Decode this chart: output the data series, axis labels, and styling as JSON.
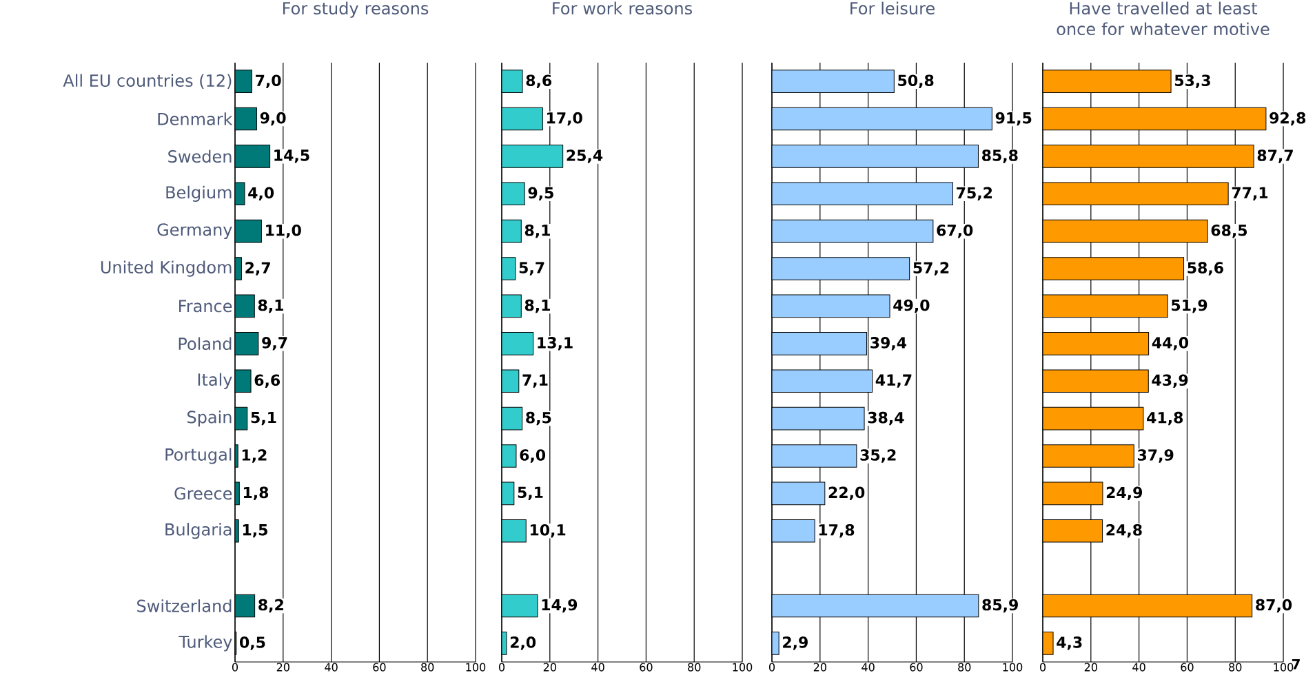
{
  "chart_data": [
    {
      "type": "bar",
      "orientation": "horizontal",
      "title": "For study reasons",
      "categories": [
        "All EU countries (12)",
        "Denmark",
        "Sweden",
        "Belgium",
        "Germany",
        "United Kingdom",
        "France",
        "Poland",
        "Italy",
        "Spain",
        "Portugal",
        "Greece",
        "Bulgaria",
        null,
        "Switzerland",
        "Turkey"
      ],
      "color": "#007a78",
      "values": [
        7.0,
        9.0,
        14.5,
        4.0,
        11.0,
        2.7,
        8.1,
        9.7,
        6.6,
        5.1,
        1.2,
        1.8,
        1.5,
        null,
        8.2,
        0.5
      ],
      "value_labels": [
        "7,0",
        "9,0",
        "14,5",
        "4,0",
        "11,0",
        "2,7",
        "8,1",
        "9,7",
        "6,6",
        "5,1",
        "1,2",
        "1,8",
        "1,5",
        null,
        "8,2",
        "0,5"
      ],
      "xlim": [
        0,
        100
      ],
      "xticks": [
        0,
        20,
        40,
        60,
        80,
        100
      ],
      "grid": "x"
    },
    {
      "type": "bar",
      "orientation": "horizontal",
      "title": "For work reasons",
      "categories": [
        null,
        null,
        null,
        null,
        null,
        null,
        null,
        null,
        null,
        null,
        null,
        null,
        null,
        null,
        null,
        null
      ],
      "color": "#33cccc",
      "values": [
        8.6,
        17.0,
        25.4,
        9.5,
        8.1,
        5.7,
        8.1,
        13.1,
        7.1,
        8.5,
        6.0,
        5.1,
        10.1,
        null,
        14.9,
        2.0
      ],
      "value_labels": [
        "8,6",
        "17,0",
        "25,4",
        "9,5",
        "8,1",
        "5,7",
        "8,1",
        "13,1",
        "7,1",
        "8,5",
        "6,0",
        "5,1",
        "10,1",
        null,
        "14,9",
        "2,0"
      ],
      "xlim": [
        0,
        100
      ],
      "xticks": [
        0,
        20,
        40,
        60,
        80,
        100
      ],
      "grid": "x",
      "tick_labels": "x"
    },
    {
      "type": "bar",
      "orientation": "horizontal",
      "title": "For leisure",
      "categories": [
        null,
        null,
        null,
        null,
        null,
        null,
        null,
        null,
        null,
        null,
        null,
        null,
        null,
        null,
        null,
        null
      ],
      "color": "#99ccff",
      "values": [
        50.8,
        91.5,
        85.8,
        75.2,
        67.0,
        57.2,
        49.0,
        39.4,
        41.7,
        38.4,
        35.2,
        22.0,
        17.8,
        null,
        85.9,
        2.9
      ],
      "value_labels": [
        "50,8",
        "91,5",
        "85,8",
        "75,2",
        "67,0",
        "57,2",
        "49,0",
        "39,4",
        "41,7",
        "38,4",
        "35,2",
        "22,0",
        "17,8",
        null,
        "85,9",
        "2,9"
      ],
      "xlim": [
        0,
        100
      ],
      "xticks": [
        0,
        20,
        40,
        60,
        80,
        100
      ],
      "grid": "x",
      "tick_labels": "x"
    },
    {
      "type": "bar",
      "orientation": "horizontal",
      "title": "Have travelled at least once for whatever motive",
      "categories": [
        null,
        null,
        null,
        null,
        null,
        null,
        null,
        null,
        null,
        null,
        null,
        null,
        null,
        null,
        null,
        null
      ],
      "color": "#ff9900",
      "values": [
        53.3,
        92.8,
        87.7,
        77.1,
        68.5,
        58.6,
        51.9,
        44.0,
        43.9,
        41.8,
        37.9,
        24.9,
        24.8,
        null,
        87.0,
        4.3
      ],
      "value_labels": [
        "53,3",
        "92,8",
        "87,7",
        "77,1",
        "68,5",
        "58,6",
        "51,9",
        "44,0",
        "43,9",
        "41,8",
        "37,9",
        "24,9",
        "24,8",
        null,
        "87,0",
        "4,3"
      ],
      "xlim": [
        0,
        100
      ],
      "xticks": [
        0,
        20,
        40,
        60,
        80,
        100
      ],
      "grid": "x",
      "tick_labels": "x",
      "annotations": [
        "7"
      ]
    }
  ]
}
